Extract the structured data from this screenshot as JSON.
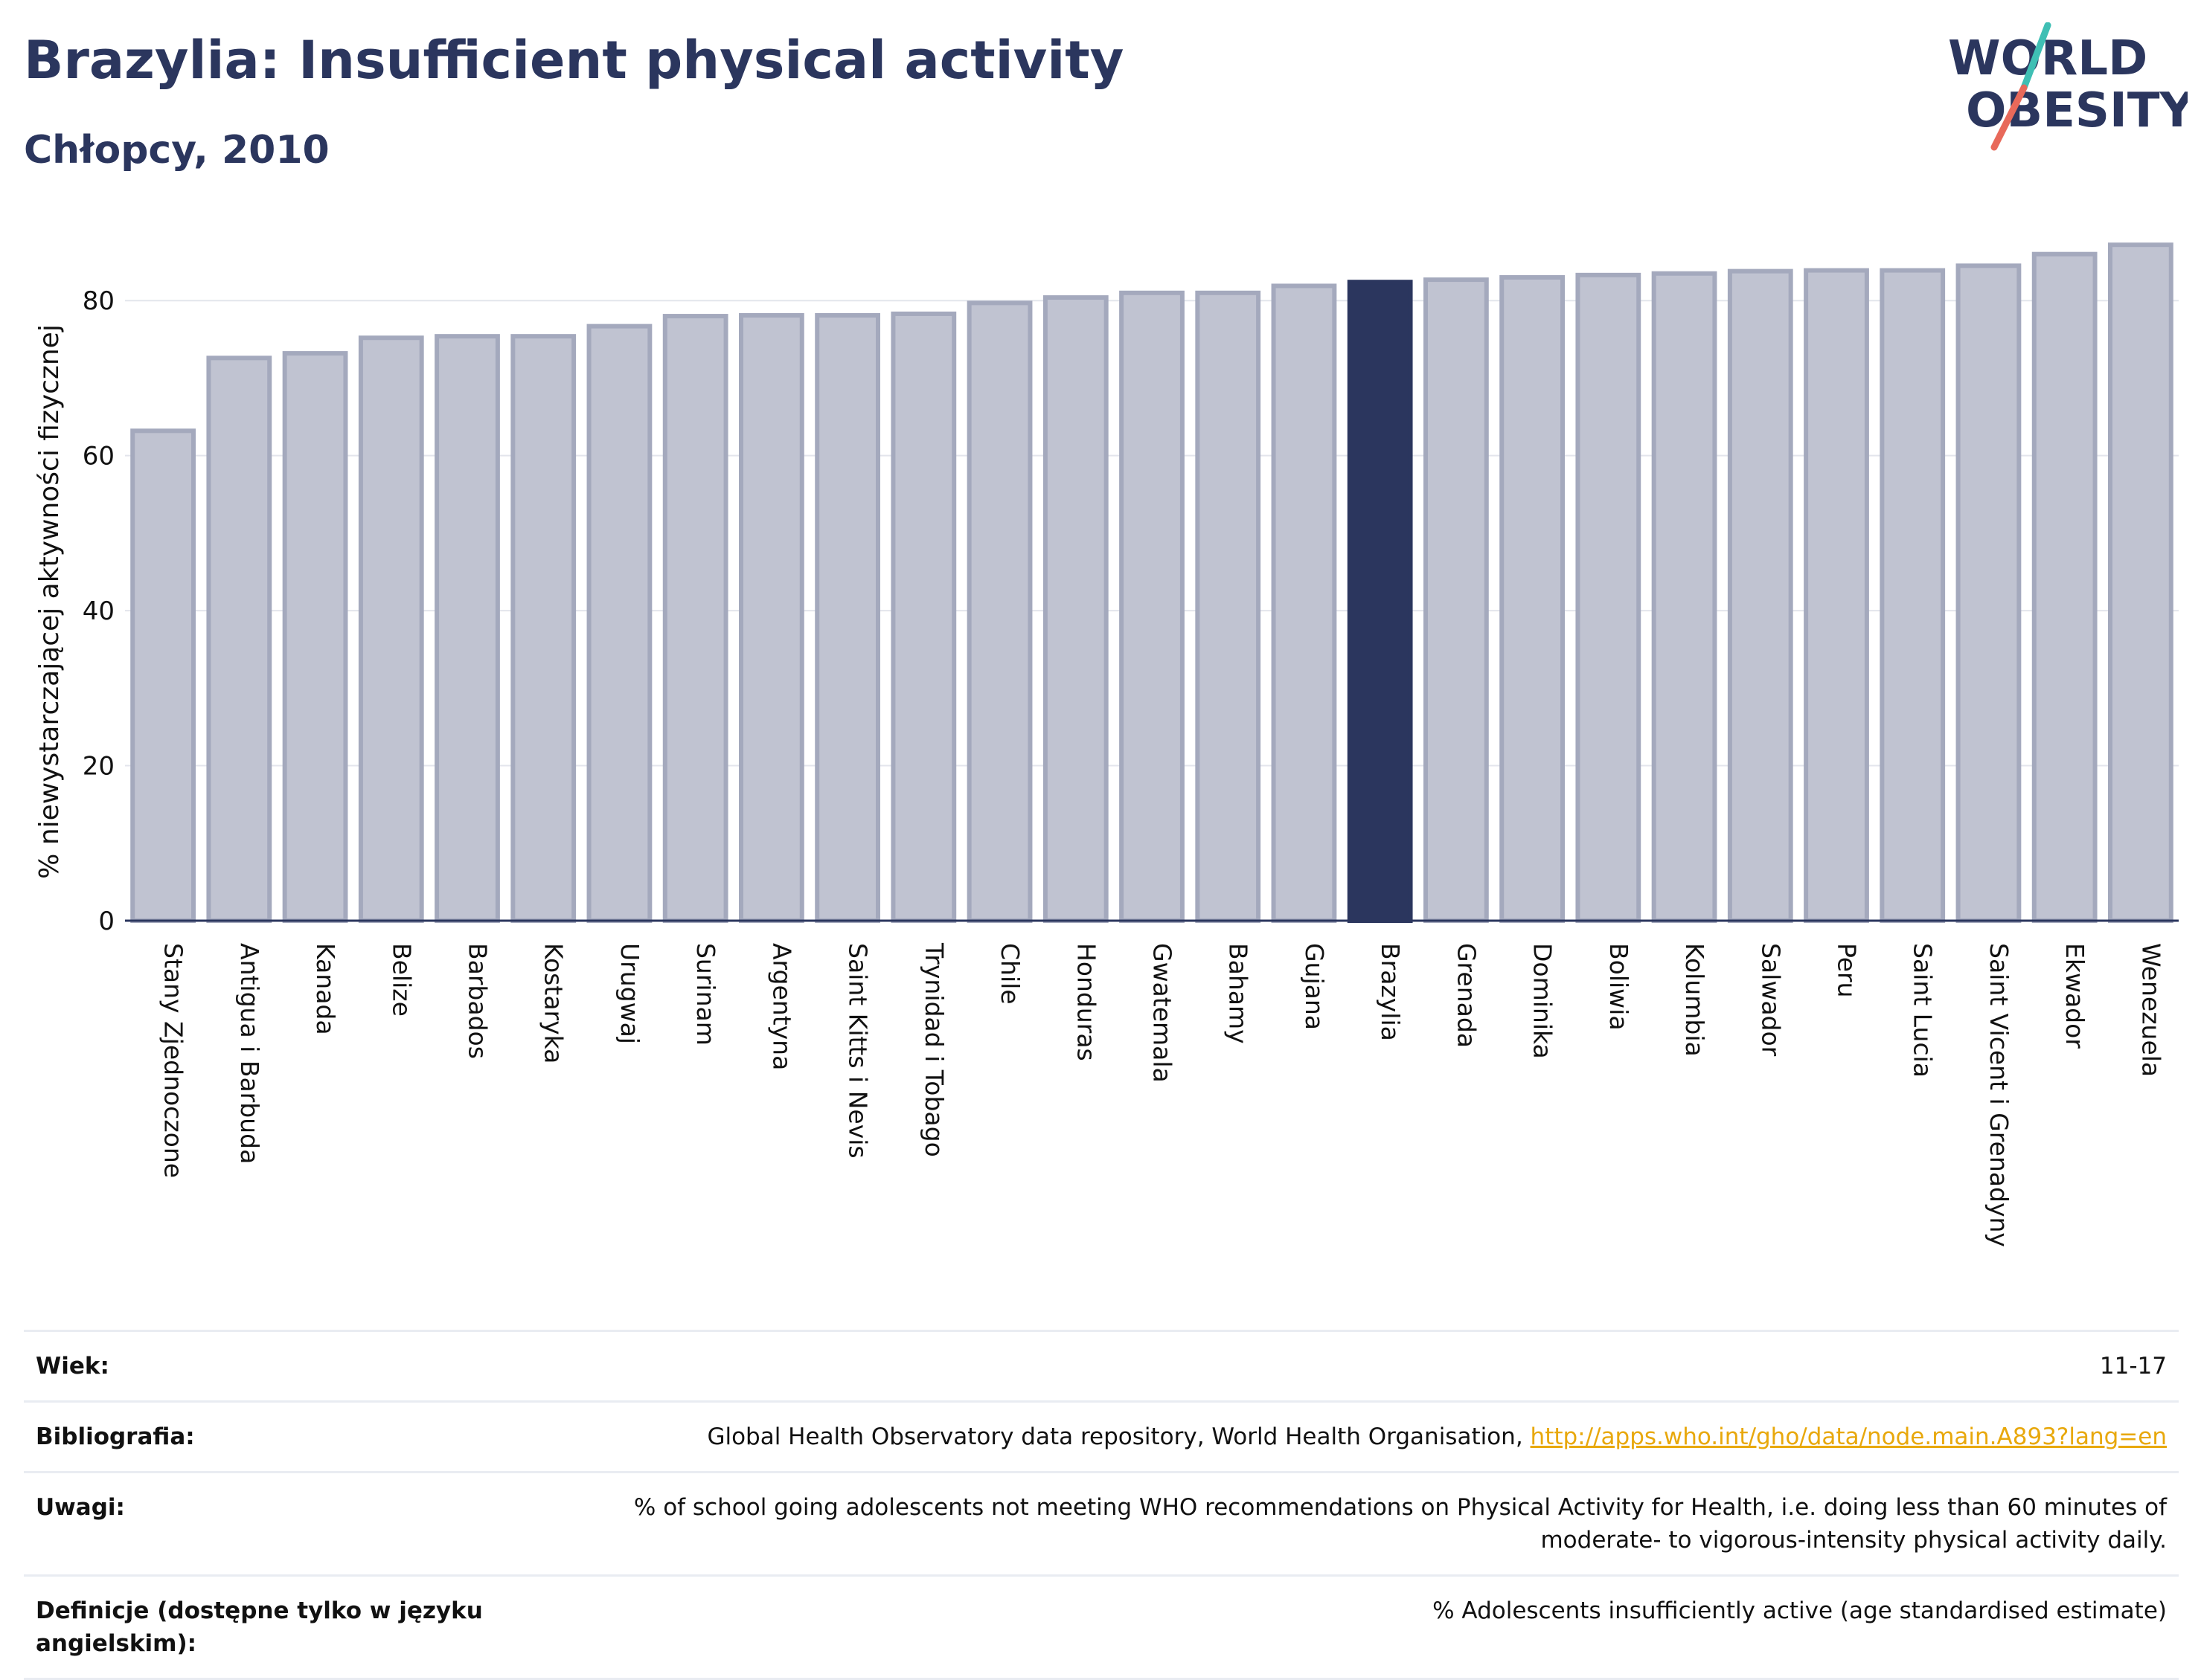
{
  "header": {
    "title": "Brazylia: Insufficient physical activity",
    "subtitle": "Chłopcy, 2010",
    "logo_line1": "WORLD",
    "logo_line2": "OBESITY"
  },
  "colors": {
    "title": "#2b365e",
    "bar": "#c0c3d1",
    "bar_border": "#a4a9bd",
    "highlight": "#2b365e",
    "logo_teal": "#3fbfb4",
    "logo_coral": "#e8695a",
    "link": "#e8a80c"
  },
  "chart_data": {
    "type": "bar",
    "ylabel": "% niewystarczającej aktywności fizycznej",
    "ylim": [
      0,
      90
    ],
    "yticks": [
      0,
      20,
      40,
      60,
      80
    ],
    "grid": true,
    "highlight": "Brazylia",
    "categories": [
      "Stany Zjednoczone",
      "Antigua i Barbuda",
      "Kanada",
      "Belize",
      "Barbados",
      "Kostaryka",
      "Urugwaj",
      "Surinam",
      "Argentyna",
      "Saint Kitts i Nevis",
      "Trynidad i Tobago",
      "Chile",
      "Honduras",
      "Gwatemala",
      "Bahamy",
      "Gujana",
      "Brazylia",
      "Grenada",
      "Dominika",
      "Boliwia",
      "Kolumbia",
      "Salwador",
      "Peru",
      "Saint Lucia",
      "Saint Vicent i Grenadyny",
      "Ekwador",
      "Wenezuela"
    ],
    "values": [
      63.2,
      72.6,
      73.2,
      75.2,
      75.4,
      75.4,
      76.7,
      78.0,
      78.1,
      78.1,
      78.3,
      79.7,
      80.4,
      81.0,
      81.0,
      81.9,
      82.4,
      82.7,
      83.0,
      83.3,
      83.5,
      83.8,
      83.9,
      83.9,
      84.5,
      86.0,
      87.2
    ]
  },
  "meta": [
    {
      "key": "Wiek:",
      "value": "11-17"
    },
    {
      "key": "Bibliografia:",
      "value": "Global Health Observatory data repository, World Health Organisation, ",
      "link": "http://apps.who.int/gho/data/node.main.A893?lang=en"
    },
    {
      "key": "Uwagi:",
      "value": "% of school going adolescents not meeting WHO recommendations on Physical Activity for Health, i.e. doing less than 60 minutes of moderate- to vigorous-intensity physical activity daily."
    },
    {
      "key": "Definicje (dostępne tylko w języku angielskim):",
      "value": "% Adolescents insufficiently active (age standardised estimate)"
    }
  ]
}
